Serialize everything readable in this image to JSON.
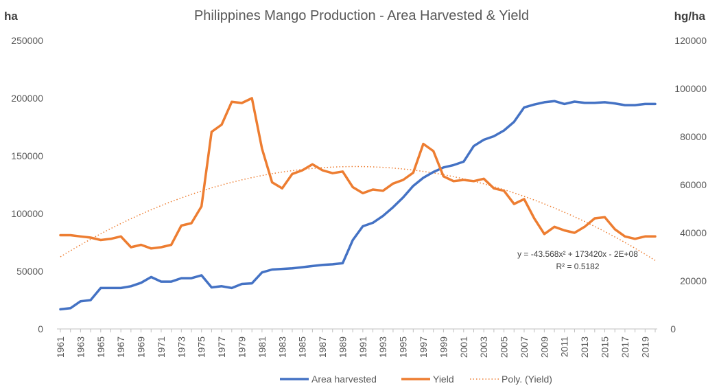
{
  "chart_data": {
    "type": "line",
    "title": "Philippines Mango Production - Area Harvested & Yield",
    "left_axis": {
      "unit": "ha",
      "min": 0,
      "max": 250000,
      "step": 50000,
      "ticks": [
        "0",
        "50000",
        "100000",
        "150000",
        "200000",
        "250000"
      ]
    },
    "right_axis": {
      "unit": "hg/ha",
      "min": 0,
      "max": 120000,
      "step": 20000,
      "ticks": [
        "0",
        "20000",
        "40000",
        "60000",
        "80000",
        "100000",
        "120000"
      ]
    },
    "x": [
      1961,
      1962,
      1963,
      1964,
      1965,
      1966,
      1967,
      1968,
      1969,
      1970,
      1971,
      1972,
      1973,
      1974,
      1975,
      1976,
      1977,
      1978,
      1979,
      1980,
      1981,
      1982,
      1983,
      1984,
      1985,
      1986,
      1987,
      1988,
      1989,
      1990,
      1991,
      1992,
      1993,
      1994,
      1995,
      1996,
      1997,
      1998,
      1999,
      2000,
      2001,
      2002,
      2003,
      2004,
      2005,
      2006,
      2007,
      2008,
      2009,
      2010,
      2011,
      2012,
      2013,
      2014,
      2015,
      2016,
      2017,
      2018,
      2019,
      2020
    ],
    "x_tick_labels": [
      "1961",
      "1963",
      "1965",
      "1967",
      "1969",
      "1971",
      "1973",
      "1975",
      "1977",
      "1979",
      "1981",
      "1983",
      "1985",
      "1987",
      "1989",
      "1991",
      "1993",
      "1995",
      "1997",
      "1999",
      "2001",
      "2003",
      "2005",
      "2007",
      "2009",
      "2011",
      "2013",
      "2015",
      "2017",
      "2019"
    ],
    "series": [
      {
        "name": "Area harvested",
        "axis": "left",
        "color": "#4472C4",
        "values": [
          17000,
          18000,
          24000,
          25000,
          35500,
          35500,
          35500,
          37000,
          40000,
          45000,
          41000,
          41000,
          44000,
          44000,
          46500,
          36000,
          37000,
          35500,
          39000,
          39500,
          49000,
          51500,
          52000,
          52500,
          53500,
          54500,
          55500,
          56000,
          57000,
          77000,
          89000,
          92000,
          98000,
          105500,
          114000,
          124000,
          131000,
          136000,
          140000,
          142000,
          145000,
          158500,
          164000,
          167000,
          172000,
          179500,
          192000,
          194500,
          196500,
          197500,
          195000,
          197000,
          196000,
          196000,
          196500,
          195500,
          194000,
          194000,
          195000,
          195000
        ]
      },
      {
        "name": "Yield",
        "axis": "right",
        "color": "#ED7D31",
        "values": [
          39000,
          39000,
          38500,
          38000,
          37000,
          37500,
          38500,
          34000,
          35000,
          33500,
          34000,
          35000,
          43000,
          44000,
          51000,
          82000,
          85000,
          94500,
          94000,
          96000,
          75000,
          61000,
          58500,
          64500,
          66000,
          68500,
          66000,
          64800,
          65500,
          59000,
          56500,
          58000,
          57500,
          60500,
          62000,
          65000,
          77000,
          74000,
          63500,
          61500,
          62000,
          61500,
          62500,
          58500,
          57500,
          52000,
          54000,
          46000,
          39500,
          42500,
          41000,
          40000,
          42500,
          46000,
          46500,
          41500,
          38500,
          37500,
          38500,
          38500
        ]
      }
    ],
    "trendline": {
      "name": "Poly. (Yield)",
      "of": "Yield",
      "axis": "right",
      "color": "#ED7D31",
      "style": "dotted",
      "equation": "y = -43.568x² + 173420x - 2E+08",
      "r2": "R² = 0.5182",
      "start": 30000,
      "peak_x": 1991,
      "peak": 67500,
      "end": 28500
    },
    "legend": {
      "position": "bottom",
      "entries": [
        "Area harvested",
        "Yield",
        "Poly. (Yield)"
      ]
    },
    "grid": false
  }
}
